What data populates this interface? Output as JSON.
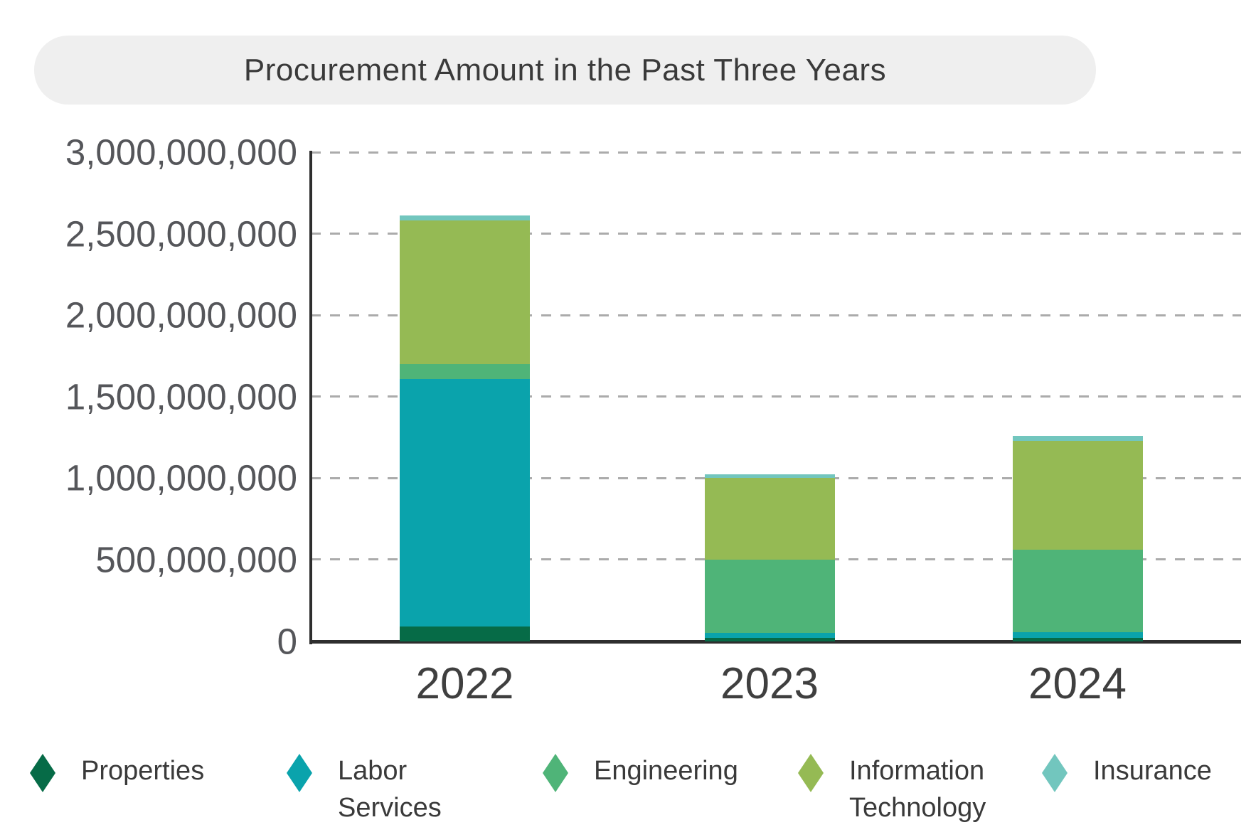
{
  "header": {
    "title": "Procurement Amount in the Past Three Years"
  },
  "chart_data": {
    "type": "bar",
    "stacked": true,
    "title": "Procurement Amount in the Past Three Years",
    "xlabel": "",
    "ylabel": "",
    "categories": [
      "2022",
      "2023",
      "2024"
    ],
    "series": [
      {
        "name": "Properties",
        "color": "#066b47",
        "values": [
          90000000,
          20000000,
          20000000
        ]
      },
      {
        "name": "Labor Services",
        "color": "#0aa3ac",
        "values": [
          1520000000,
          30000000,
          35000000
        ]
      },
      {
        "name": "Engineering",
        "color": "#4fb478",
        "values": [
          90000000,
          450000000,
          505000000
        ]
      },
      {
        "name": "Information Technology",
        "color": "#95ba54",
        "values": [
          880000000,
          500000000,
          670000000
        ]
      },
      {
        "name": "Insurance",
        "color": "#72c6be",
        "values": [
          30000000,
          25000000,
          30000000
        ]
      }
    ],
    "totals": [
      2610000000,
      1025000000,
      1260000000
    ],
    "y_axis": {
      "min": 0,
      "max": 3000000000,
      "tick_values": [
        3000000000,
        2500000000,
        2000000000,
        1500000000,
        1000000000,
        500000000,
        0
      ],
      "tick_labels": [
        "3,000,000,000",
        "2,500,000,000",
        "2,000,000,000",
        "1,500,000,000",
        "1,000,000,000",
        "500,000,000",
        "0"
      ]
    },
    "grid": "dashed horizontal gridlines at every tick except zero",
    "legend_position": "bottom"
  },
  "legend": {
    "items": [
      {
        "line1": "Properties",
        "line2": ""
      },
      {
        "line1": "Labor",
        "line2": "Services"
      },
      {
        "line1": "Engineering",
        "line2": ""
      },
      {
        "line1": "Information",
        "line2": "Technology"
      },
      {
        "line1": "Insurance",
        "line2": ""
      }
    ]
  },
  "colors": {
    "title_pill_bg": "#efefef",
    "title_text": "#3a3a3a",
    "axis_line": "#2e2e2e",
    "gridline": "#ababab",
    "y_tick_text": "#55565a",
    "x_tick_text": "#3f3f3f",
    "background": "#ffffff"
  }
}
